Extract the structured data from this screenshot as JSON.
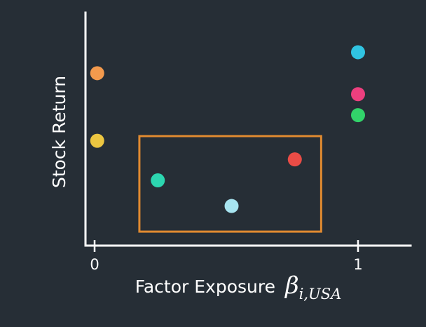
{
  "chart_data": {
    "type": "scatter",
    "title": "",
    "xlabel": "Factor Exposure",
    "xlabel_symbol": "β",
    "xlabel_subscript": "i,USA",
    "ylabel": "Stock Return",
    "x_ticks": [
      {
        "value": 0,
        "label": "0"
      },
      {
        "value": 1,
        "label": "1"
      }
    ],
    "xlim": [
      -0.05,
      1.2
    ],
    "ylim": [
      0,
      1
    ],
    "grid": false,
    "points": [
      {
        "x": 0.01,
        "y": 0.74,
        "color": "#f39a4d"
      },
      {
        "x": 0.01,
        "y": 0.45,
        "color": "#ecc641"
      },
      {
        "x": 0.24,
        "y": 0.28,
        "color": "#2cd6b0"
      },
      {
        "x": 0.52,
        "y": 0.17,
        "color": "#a7e4f0"
      },
      {
        "x": 0.76,
        "y": 0.37,
        "color": "#ea4c46"
      },
      {
        "x": 1.0,
        "y": 0.83,
        "color": "#30c4e2"
      },
      {
        "x": 1.0,
        "y": 0.65,
        "color": "#ec3f7e"
      },
      {
        "x": 1.0,
        "y": 0.56,
        "color": "#32d36a"
      }
    ],
    "highlight_region": {
      "x": [
        0.17,
        0.86
      ],
      "y": [
        0.06,
        0.47
      ],
      "color": "#e08a30"
    }
  }
}
